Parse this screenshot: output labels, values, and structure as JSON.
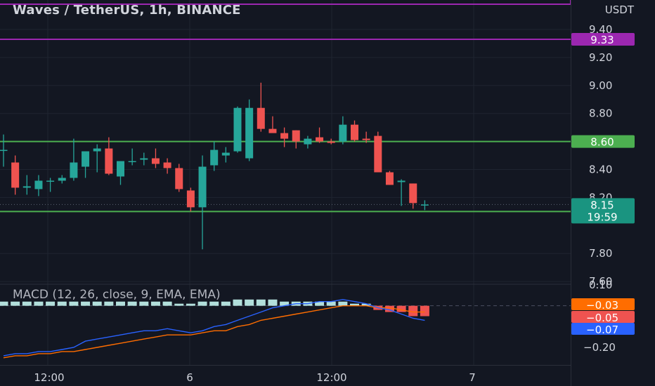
{
  "title": "Waves / TetherUS, 1h, BINANCE",
  "axis_unit": "USDT",
  "colors": {
    "background": "#131722",
    "grid": "#1f2430",
    "up": "#26a69a",
    "down": "#ef5350",
    "hline_green": "#4caf50",
    "hline_purple": "#9c27b0",
    "macd_line": "#2962ff",
    "signal_line": "#ff6d00",
    "text": "#d1d4dc"
  },
  "chart_data": [
    {
      "type": "candlestick",
      "title": "Waves / TetherUS, 1h, BINANCE",
      "ylabel": "USDT",
      "ylim": [
        7.6,
        9.5
      ],
      "y_ticks": [
        "9.40",
        "9.20",
        "9.00",
        "8.80",
        "8.60",
        "8.40",
        "8.20",
        "7.80",
        "7.60"
      ],
      "x_ticks": [
        "12:00",
        "6",
        "12:00",
        "7"
      ],
      "candles": [
        {
          "o": 8.54,
          "h": 8.65,
          "l": 8.42,
          "c": 8.54
        },
        {
          "o": 8.45,
          "h": 8.5,
          "l": 8.22,
          "c": 8.27
        },
        {
          "o": 8.27,
          "h": 8.36,
          "l": 8.22,
          "c": 8.28
        },
        {
          "o": 8.26,
          "h": 8.36,
          "l": 8.21,
          "c": 8.32
        },
        {
          "o": 8.32,
          "h": 8.34,
          "l": 8.24,
          "c": 8.32
        },
        {
          "o": 8.32,
          "h": 8.36,
          "l": 8.3,
          "c": 8.34
        },
        {
          "o": 8.34,
          "h": 8.62,
          "l": 8.32,
          "c": 8.45
        },
        {
          "o": 8.42,
          "h": 8.52,
          "l": 8.34,
          "c": 8.53
        },
        {
          "o": 8.53,
          "h": 8.58,
          "l": 8.38,
          "c": 8.55
        },
        {
          "o": 8.55,
          "h": 8.63,
          "l": 8.36,
          "c": 8.37
        },
        {
          "o": 8.35,
          "h": 8.45,
          "l": 8.29,
          "c": 8.46
        },
        {
          "o": 8.46,
          "h": 8.55,
          "l": 8.43,
          "c": 8.46
        },
        {
          "o": 8.47,
          "h": 8.52,
          "l": 8.43,
          "c": 8.48
        },
        {
          "o": 8.48,
          "h": 8.55,
          "l": 8.41,
          "c": 8.44
        },
        {
          "o": 8.45,
          "h": 8.48,
          "l": 8.37,
          "c": 8.41
        },
        {
          "o": 8.41,
          "h": 8.44,
          "l": 8.24,
          "c": 8.26
        },
        {
          "o": 8.25,
          "h": 8.27,
          "l": 8.1,
          "c": 8.13
        },
        {
          "o": 8.13,
          "h": 8.5,
          "l": 7.83,
          "c": 8.42
        },
        {
          "o": 8.43,
          "h": 8.6,
          "l": 8.39,
          "c": 8.54
        },
        {
          "o": 8.5,
          "h": 8.56,
          "l": 8.45,
          "c": 8.52
        },
        {
          "o": 8.53,
          "h": 8.85,
          "l": 8.52,
          "c": 8.84
        },
        {
          "o": 8.48,
          "h": 8.9,
          "l": 8.46,
          "c": 8.84
        },
        {
          "o": 8.84,
          "h": 9.02,
          "l": 8.67,
          "c": 8.69
        },
        {
          "o": 8.69,
          "h": 8.78,
          "l": 8.67,
          "c": 8.66
        },
        {
          "o": 8.66,
          "h": 8.7,
          "l": 8.56,
          "c": 8.62
        },
        {
          "o": 8.68,
          "h": 8.68,
          "l": 8.55,
          "c": 8.6
        },
        {
          "o": 8.58,
          "h": 8.64,
          "l": 8.55,
          "c": 8.62
        },
        {
          "o": 8.63,
          "h": 8.7,
          "l": 8.59,
          "c": 8.6
        },
        {
          "o": 8.6,
          "h": 8.62,
          "l": 8.58,
          "c": 8.59
        },
        {
          "o": 8.6,
          "h": 8.78,
          "l": 8.58,
          "c": 8.72
        },
        {
          "o": 8.72,
          "h": 8.75,
          "l": 8.6,
          "c": 8.61
        },
        {
          "o": 8.62,
          "h": 8.67,
          "l": 8.59,
          "c": 8.61
        },
        {
          "o": 8.64,
          "h": 8.67,
          "l": 8.39,
          "c": 8.38
        },
        {
          "o": 8.38,
          "h": 8.39,
          "l": 8.29,
          "c": 8.29
        },
        {
          "o": 8.31,
          "h": 8.33,
          "l": 8.14,
          "c": 8.32
        },
        {
          "o": 8.3,
          "h": 8.3,
          "l": 8.12,
          "c": 8.16
        },
        {
          "o": 8.15,
          "h": 8.18,
          "l": 8.11,
          "c": 8.15
        }
      ],
      "horizontal_lines": [
        {
          "value": 9.33,
          "label": "9.33",
          "color": "#9c27b0"
        },
        {
          "value": 8.6,
          "label": "8.60",
          "color": "#4caf50"
        },
        {
          "value": 8.1,
          "label": "8.10",
          "color": "#4caf50"
        }
      ],
      "last_price": {
        "value": 8.15,
        "label": "8.15",
        "countdown": "19:59"
      }
    },
    {
      "type": "macd",
      "title": "MACD (12, 26, close, 9, EMA, EMA)",
      "ylim": [
        -0.24,
        0.11
      ],
      "y_ticks": [
        "0.10",
        "−0.20"
      ],
      "histogram": [
        0.02,
        0.02,
        0.02,
        0.02,
        0.02,
        0.02,
        0.02,
        0.02,
        0.02,
        0.02,
        0.02,
        0.02,
        0.02,
        0.02,
        0.02,
        0.01,
        0.01,
        0.02,
        0.02,
        0.02,
        0.03,
        0.03,
        0.03,
        0.03,
        0.02,
        0.02,
        0.02,
        0.02,
        0.02,
        0.02,
        0.01,
        0.01,
        -0.02,
        -0.03,
        -0.03,
        -0.05,
        -0.05
      ],
      "macd": [
        -0.24,
        -0.23,
        -0.23,
        -0.22,
        -0.22,
        -0.21,
        -0.2,
        -0.17,
        -0.16,
        -0.15,
        -0.14,
        -0.13,
        -0.12,
        -0.12,
        -0.11,
        -0.12,
        -0.13,
        -0.12,
        -0.1,
        -0.09,
        -0.07,
        -0.05,
        -0.03,
        -0.01,
        0.0,
        0.01,
        0.01,
        0.02,
        0.02,
        0.03,
        0.02,
        0.01,
        -0.01,
        -0.02,
        -0.04,
        -0.06,
        -0.07
      ],
      "signal": [
        -0.25,
        -0.24,
        -0.24,
        -0.23,
        -0.23,
        -0.22,
        -0.22,
        -0.21,
        -0.2,
        -0.19,
        -0.18,
        -0.17,
        -0.16,
        -0.15,
        -0.14,
        -0.14,
        -0.14,
        -0.13,
        -0.12,
        -0.12,
        -0.1,
        -0.09,
        -0.07,
        -0.06,
        -0.05,
        -0.04,
        -0.03,
        -0.02,
        -0.01,
        0.0,
        0.0,
        0.0,
        -0.01,
        -0.01,
        -0.02,
        -0.03,
        -0.03
      ],
      "value_labels": [
        {
          "label": "−0.03",
          "color": "#ff6d00"
        },
        {
          "label": "−0.05",
          "color": "#ef5350"
        },
        {
          "label": "−0.07",
          "color": "#2962ff"
        }
      ]
    }
  ]
}
